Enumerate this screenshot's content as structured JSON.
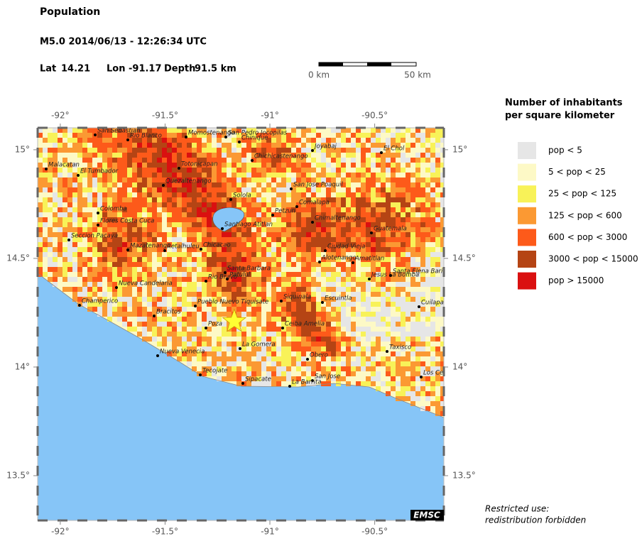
{
  "header": {
    "title": "Population",
    "event": "M5.0  2014/06/13 - 12:26:34 UTC",
    "lat_label": "Lat",
    "lon_label": "Lon",
    "depth_label": "Depth",
    "lat": 14.21,
    "lon": -91.17,
    "depth": "91.5 km"
  },
  "scale_bar": {
    "start": "0 km",
    "end": "50 km"
  },
  "map": {
    "lonlim": [
      -92.108,
      -90.17
    ],
    "latlim": [
      13.294,
      15.101
    ],
    "lonticks": [
      {
        "value": -92,
        "label": "-92°"
      },
      {
        "value": -91.5,
        "label": "-91.5°"
      },
      {
        "value": -91,
        "label": "-91°"
      },
      {
        "value": -90.5,
        "label": "-90.5°"
      }
    ],
    "latticks": [
      {
        "value": 15,
        "label": "15°"
      },
      {
        "value": 14.5,
        "label": "14.5°"
      },
      {
        "value": 14,
        "label": "14°"
      },
      {
        "value": 13.5,
        "label": "13.5°"
      }
    ],
    "cities": [
      "San Sebastian",
      "Rio Blanco",
      "Momostenango",
      "San Pedro Jocopilas",
      "Chinique",
      "Joyabaj",
      "El Chol",
      "Malacatan",
      "El Tumbador",
      "Totonicapan",
      "Quezaltenango",
      "Chichicastenango",
      "San Jose Poaquil",
      "Solola",
      "Comalapa",
      "Colomba",
      "Flores Costa Cuca",
      "Petzun",
      "Santiago Atitlan",
      "Chimaltenango",
      "Guatemala",
      "Seccion Pacaya",
      "Mazatenango",
      "Retalhuleu",
      "Chicacao",
      "Ciudad Vieja",
      "Alotenango",
      "Amatitlan",
      "Jesus La Bomba",
      "Santa Barbara",
      "Patulul",
      "Rio Bravo",
      "Santa Elena Barillas",
      "Nueva Candelaria",
      "Siquinala",
      "Escuintla",
      "Champerico",
      "Bracitos",
      "Pueblo Nuevo Tiquisate",
      "Poza",
      "Ceiba Amelia",
      "Cuilapa",
      "La Gomera",
      "Taxisco",
      "Nueva Venecia",
      "Obero",
      "Tecojate",
      "Sipacate",
      "San Jose",
      "La Barrita",
      "Los Cerritos"
    ]
  },
  "legend": {
    "title": [
      "Number of inhabitants",
      "per square kilometer"
    ],
    "items": [
      {
        "label": "pop < 5",
        "color": "#e6e6e6"
      },
      {
        "label": "5 < pop < 25",
        "color": "#fdf9c6"
      },
      {
        "label": "25 < pop < 125",
        "color": "#f8f258"
      },
      {
        "label": "125 < pop < 600",
        "color": "#fb9933"
      },
      {
        "label": "600 < pop < 3000",
        "color": "#fd5a1a"
      },
      {
        "label": "3000 < pop < 15000",
        "color": "#b54414"
      },
      {
        "label": "pop > 15000",
        "color": "#da1010"
      }
    ]
  },
  "badge": "EMSC",
  "notice": [
    "Restricted use:",
    "redistribution forbidden"
  ]
}
